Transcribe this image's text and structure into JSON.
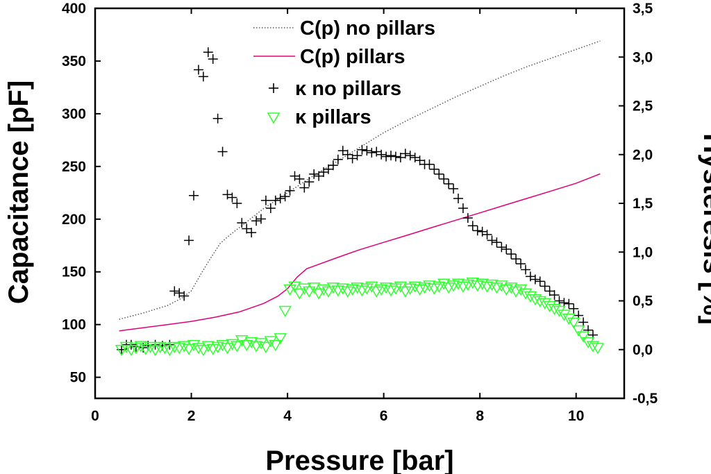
{
  "chart_data": {
    "type": "scatter",
    "title": "",
    "xlabel": "Pressure [bar]",
    "ylabel_left": "Capacitance [pF]",
    "ylabel_right": "Hysteresis [%]",
    "xlim": [
      0,
      11
    ],
    "ylim_left": [
      30,
      400
    ],
    "ylim_right": [
      -0.5,
      3.5
    ],
    "x_ticks": [
      "0",
      "2",
      "4",
      "6",
      "8",
      "10"
    ],
    "y_left_ticks": [
      "50",
      "100",
      "150",
      "200",
      "250",
      "300",
      "350",
      "400"
    ],
    "y_right_ticks": [
      "-0,5",
      "0,0",
      "0,5",
      "1,0",
      "1,5",
      "2,0",
      "2,5",
      "3,0",
      "3,5"
    ],
    "grid": false,
    "legend_position": "top-center",
    "colors": {
      "no_pillars_line": "#555555",
      "pillars_line": "#e0007a",
      "no_pillars_marker": "#000000",
      "pillars_marker": "#33ff33"
    },
    "series": [
      {
        "name": "C(p) no pillars",
        "axis": "left",
        "style": "dotted-line",
        "x": [
          0.5,
          1.0,
          1.5,
          1.8,
          2.0,
          2.2,
          2.4,
          2.6,
          2.8,
          3.0,
          3.5,
          4.0,
          4.5,
          5.0,
          5.5,
          6.0,
          6.5,
          7.0,
          7.5,
          8.0,
          8.5,
          9.0,
          9.5,
          10.0,
          10.5
        ],
        "y": [
          105,
          111,
          118,
          125,
          132,
          148,
          163,
          177,
          185,
          192,
          210,
          225,
          240,
          254,
          268,
          282,
          294,
          305,
          316,
          326,
          336,
          345,
          353,
          361,
          369
        ]
      },
      {
        "name": "C(p) pillars",
        "axis": "left",
        "style": "line",
        "x": [
          0.5,
          1.0,
          1.5,
          2.0,
          2.5,
          3.0,
          3.5,
          3.8,
          4.0,
          4.2,
          4.4,
          5.0,
          5.5,
          6.0,
          6.5,
          7.0,
          7.5,
          8.0,
          8.5,
          9.0,
          9.5,
          10.0,
          10.5
        ],
        "y": [
          94,
          97,
          100,
          103,
          107,
          112,
          120,
          127,
          134,
          145,
          153,
          163,
          171,
          178,
          185,
          192,
          199,
          206,
          213,
          220,
          227,
          234,
          243
        ]
      },
      {
        "name": "κ no pillars",
        "axis": "right",
        "marker": "plus",
        "x": [
          0.55,
          0.65,
          0.75,
          0.85,
          1.0,
          1.1,
          1.25,
          1.4,
          1.55,
          1.65,
          1.75,
          1.85,
          1.95,
          2.05,
          2.15,
          2.25,
          2.35,
          2.45,
          2.55,
          2.65,
          2.75,
          2.85,
          2.95,
          3.05,
          3.15,
          3.25,
          3.35,
          3.45,
          3.55,
          3.65,
          3.75,
          3.85,
          3.95,
          4.05,
          4.15,
          4.25,
          4.35,
          4.45,
          4.55,
          4.65,
          4.75,
          4.85,
          4.95,
          5.05,
          5.15,
          5.25,
          5.35,
          5.45,
          5.55,
          5.65,
          5.75,
          5.85,
          5.95,
          6.05,
          6.15,
          6.25,
          6.35,
          6.45,
          6.55,
          6.65,
          6.75,
          6.85,
          6.95,
          7.05,
          7.15,
          7.25,
          7.35,
          7.45,
          7.55,
          7.65,
          7.75,
          7.85,
          7.95,
          8.05,
          8.15,
          8.25,
          8.35,
          8.45,
          8.55,
          8.65,
          8.75,
          8.85,
          8.95,
          9.05,
          9.15,
          9.25,
          9.35,
          9.45,
          9.55,
          9.65,
          9.75,
          9.85,
          9.95,
          10.05,
          10.15,
          10.25,
          10.35
        ],
        "y": [
          0.0,
          0.05,
          0.05,
          0.03,
          0.02,
          0.04,
          0.05,
          0.04,
          0.05,
          0.6,
          0.58,
          0.55,
          1.12,
          1.58,
          2.87,
          2.8,
          3.05,
          2.98,
          2.37,
          2.03,
          1.59,
          1.56,
          1.5,
          1.3,
          1.24,
          1.2,
          1.32,
          1.34,
          1.53,
          1.45,
          1.53,
          1.55,
          1.57,
          1.63,
          1.78,
          1.75,
          1.66,
          1.72,
          1.8,
          1.78,
          1.82,
          1.85,
          1.89,
          1.95,
          2.04,
          2.0,
          1.96,
          1.99,
          2.05,
          2.04,
          2.02,
          2.03,
          2.0,
          1.98,
          1.99,
          1.98,
          1.97,
          2.01,
          1.99,
          1.97,
          1.94,
          1.9,
          1.9,
          1.85,
          1.8,
          1.75,
          1.7,
          1.65,
          1.55,
          1.45,
          1.35,
          1.27,
          1.22,
          1.21,
          1.18,
          1.12,
          1.1,
          1.05,
          1.03,
          0.98,
          0.93,
          0.88,
          0.82,
          0.75,
          0.72,
          0.7,
          0.65,
          0.6,
          0.56,
          0.5,
          0.48,
          0.47,
          0.42,
          0.35,
          0.28,
          0.2,
          0.15
        ]
      },
      {
        "name": "κ pillars",
        "axis": "right",
        "marker": "triangle-down",
        "x": [
          0.55,
          0.65,
          0.75,
          0.85,
          0.95,
          1.05,
          1.15,
          1.25,
          1.35,
          1.45,
          1.55,
          1.65,
          1.75,
          1.85,
          1.95,
          2.05,
          2.15,
          2.25,
          2.35,
          2.45,
          2.55,
          2.65,
          2.75,
          2.85,
          2.95,
          3.05,
          3.15,
          3.25,
          3.35,
          3.45,
          3.55,
          3.65,
          3.75,
          3.85,
          3.95,
          4.05,
          4.15,
          4.25,
          4.35,
          4.45,
          4.55,
          4.65,
          4.75,
          4.85,
          4.95,
          5.05,
          5.15,
          5.25,
          5.35,
          5.45,
          5.55,
          5.65,
          5.75,
          5.85,
          5.95,
          6.05,
          6.15,
          6.25,
          6.35,
          6.45,
          6.55,
          6.65,
          6.75,
          6.85,
          6.95,
          7.05,
          7.15,
          7.25,
          7.35,
          7.45,
          7.55,
          7.65,
          7.75,
          7.85,
          7.95,
          8.05,
          8.15,
          8.25,
          8.35,
          8.45,
          8.55,
          8.65,
          8.75,
          8.85,
          8.95,
          9.05,
          9.15,
          9.25,
          9.35,
          9.45,
          9.55,
          9.65,
          9.75,
          9.85,
          9.95,
          10.05,
          10.15,
          10.25,
          10.35,
          10.45
        ],
        "y": [
          0.0,
          0.03,
          0.0,
          0.02,
          0.04,
          0.01,
          0.03,
          0.0,
          0.03,
          0.02,
          0.0,
          0.03,
          0.02,
          0.04,
          0.01,
          0.05,
          0.02,
          0.0,
          0.04,
          0.01,
          0.03,
          0.05,
          0.02,
          0.06,
          0.04,
          0.1,
          0.05,
          0.08,
          0.04,
          0.07,
          0.03,
          0.09,
          0.05,
          0.12,
          0.4,
          0.62,
          0.65,
          0.58,
          0.63,
          0.6,
          0.64,
          0.58,
          0.62,
          0.6,
          0.64,
          0.61,
          0.63,
          0.6,
          0.62,
          0.64,
          0.61,
          0.63,
          0.65,
          0.6,
          0.62,
          0.64,
          0.61,
          0.63,
          0.65,
          0.6,
          0.63,
          0.65,
          0.62,
          0.64,
          0.66,
          0.63,
          0.65,
          0.68,
          0.64,
          0.66,
          0.68,
          0.65,
          0.67,
          0.69,
          0.66,
          0.68,
          0.65,
          0.67,
          0.64,
          0.66,
          0.62,
          0.64,
          0.6,
          0.62,
          0.58,
          0.55,
          0.52,
          0.5,
          0.48,
          0.45,
          0.42,
          0.4,
          0.36,
          0.32,
          0.28,
          0.2,
          0.14,
          0.08,
          0.04,
          0.02
        ]
      }
    ]
  }
}
